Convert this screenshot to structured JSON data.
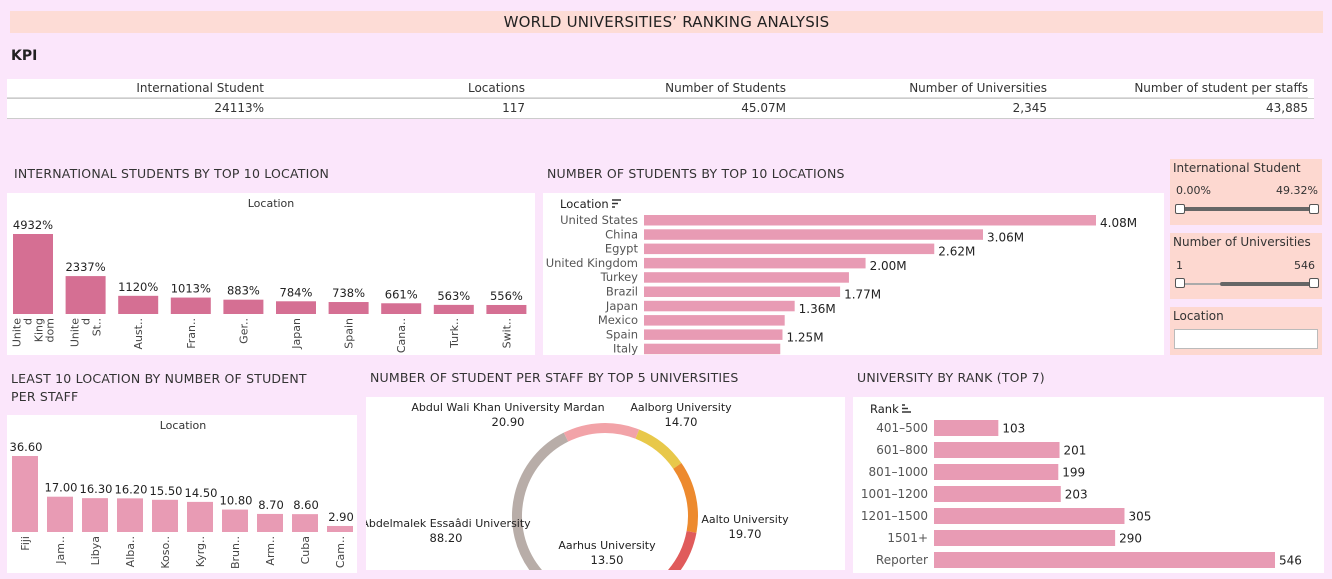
{
  "title": "WORLD UNIVERSITIES’ RANKING ANALYSIS",
  "kpi": {
    "heading": "KPI",
    "columns": [
      {
        "label": "International Student",
        "value": "24113%"
      },
      {
        "label": "Locations",
        "value": "117"
      },
      {
        "label": "Number of Students",
        "value": "45.07M"
      },
      {
        "label": "Number of Universities",
        "value": "2,345"
      },
      {
        "label": "Number of student per staffs",
        "value": "43,885"
      }
    ]
  },
  "sections": {
    "intl": "INTERNATIONAL STUDENTS BY TOP 10 LOCATION",
    "students": "NUMBER OF STUDENTS BY TOP 10 LOCATIONS",
    "least": "LEAST 10 LOCATION BY NUMBER OF STUDENT PER STAFF",
    "perstaff": "NUMBER OF STUDENT PER STAFF BY TOP 5 UNIVERSITIES",
    "rank": "UNIVERSITY BY RANK (TOP 7)"
  },
  "filters": {
    "intl": {
      "title": "International Student",
      "min": "0.00%",
      "max": "49.32%"
    },
    "univ": {
      "title": "Number of Universities",
      "min": "1",
      "max": "546"
    },
    "location": {
      "title": "Location"
    }
  },
  "chart_data": [
    {
      "type": "bar",
      "id": "intl",
      "header": "Location",
      "categories": [
        "Unite d King dom",
        "Unite d St..",
        "Aust..",
        "Fran..",
        "Ger..",
        "Japan",
        "Spain",
        "Cana..",
        "Turk..",
        "Swit.."
      ],
      "values": [
        4932,
        2337,
        1120,
        1013,
        883,
        784,
        738,
        661,
        563,
        556
      ],
      "labels": [
        "4932%",
        "2337%",
        "1120%",
        "1013%",
        "883%",
        "784%",
        "738%",
        "661%",
        "563%",
        "556%"
      ],
      "color": "#d56f93"
    },
    {
      "type": "bar",
      "id": "students",
      "header": "Location",
      "orientation": "horizontal",
      "categories": [
        "United States",
        "China",
        "Egypt",
        "United Kingdom",
        "Turkey",
        "Brazil",
        "Japan",
        "Mexico",
        "Spain",
        "Italy"
      ],
      "values": [
        4.08,
        3.06,
        2.62,
        2.0,
        1.85,
        1.77,
        1.36,
        1.27,
        1.25,
        1.23
      ],
      "labels": [
        "4.08M",
        "3.06M",
        "2.62M",
        "2.00M",
        "",
        "1.77M",
        "1.36M",
        "",
        "1.25M",
        ""
      ],
      "color": "#e89bb4"
    },
    {
      "type": "bar",
      "id": "least",
      "header": "Location",
      "categories": [
        "Fiji",
        "Jam..",
        "Libya",
        "Alba..",
        "Koso..",
        "Kyrg..",
        "Brun..",
        "Arm..",
        "Cuba",
        "Cam.."
      ],
      "values": [
        36.6,
        17.0,
        16.3,
        16.2,
        15.5,
        14.5,
        10.8,
        8.7,
        8.6,
        2.9
      ],
      "labels": [
        "36.60",
        "17.00",
        "16.30",
        "16.20",
        "15.50",
        "14.50",
        "10.80",
        "8.70",
        "8.60",
        "2.90"
      ],
      "color": "#e89bb4"
    },
    {
      "type": "pie",
      "id": "perstaff",
      "slices": [
        {
          "name": "Abdul Wali Khan University Mardan",
          "value": 20.9,
          "label": "20.90",
          "color": "#f2a3a8"
        },
        {
          "name": "Aalborg University",
          "value": 14.7,
          "label": "14.70",
          "color": "#e8c84a"
        },
        {
          "name": "Aalto University",
          "value": 19.7,
          "label": "19.70",
          "color": "#ed8a2e"
        },
        {
          "name": "Aarhus University",
          "value": 13.5,
          "label": "13.50",
          "color": "#e05b5b"
        },
        {
          "name": "Abdelmalek Essaâdi University",
          "value": 88.2,
          "label": "88.20",
          "color": "#b8ada8"
        }
      ]
    },
    {
      "type": "bar",
      "id": "rank",
      "header": "Rank",
      "orientation": "horizontal",
      "categories": [
        "401–500",
        "601–800",
        "801–1000",
        "1001–1200",
        "1201–1500",
        "1501+",
        "Reporter"
      ],
      "values": [
        103,
        201,
        199,
        203,
        305,
        290,
        546
      ],
      "labels": [
        "103",
        "201",
        "199",
        "203",
        "305",
        "290",
        "546"
      ],
      "color": "#e89bb4"
    }
  ]
}
